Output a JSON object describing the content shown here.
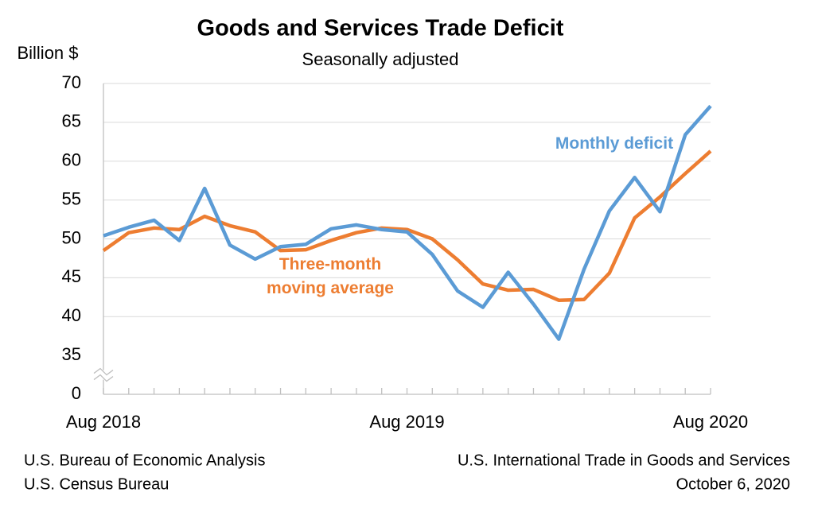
{
  "chart_data": {
    "type": "line",
    "title": "Goods and Services Trade Deficit",
    "subtitle": "Seasonally adjusted",
    "y_label": "Billion $",
    "categories": [
      "Aug 2018",
      null,
      null,
      null,
      null,
      null,
      null,
      null,
      null,
      null,
      null,
      null,
      "Aug 2019",
      null,
      null,
      null,
      null,
      null,
      null,
      null,
      null,
      null,
      null,
      null,
      "Aug 2020"
    ],
    "series": [
      {
        "name": "Monthly deficit",
        "color": "#5b9bd5",
        "values": [
          50.4,
          51.5,
          52.4,
          49.8,
          56.5,
          49.2,
          47.4,
          49.0,
          49.3,
          51.3,
          51.8,
          51.2,
          50.9,
          48.0,
          43.3,
          41.2,
          45.7,
          41.6,
          37.1,
          46.1,
          53.6,
          57.9,
          53.5,
          63.4,
          67.1
        ]
      },
      {
        "name": "Three-month moving average",
        "color": "#ed7d31",
        "values": [
          48.5,
          50.8,
          51.4,
          51.2,
          52.9,
          51.7,
          50.9,
          48.5,
          48.6,
          49.8,
          50.8,
          51.4,
          51.2,
          50.0,
          47.3,
          44.2,
          43.4,
          43.5,
          42.1,
          42.2,
          45.6,
          52.7,
          55.4,
          58.4,
          61.3
        ]
      }
    ],
    "ylim": [
      0,
      70
    ],
    "yticks": [
      0,
      35,
      40,
      45,
      50,
      55,
      60,
      65,
      70
    ],
    "axis_break": {
      "from": 0,
      "to": 35
    },
    "grid": true,
    "sources": [
      "U.S. Bureau of Economic Analysis",
      "U.S. Census Bureau"
    ],
    "report": [
      "U.S. International Trade in Goods and Services",
      "October 6, 2020"
    ]
  }
}
